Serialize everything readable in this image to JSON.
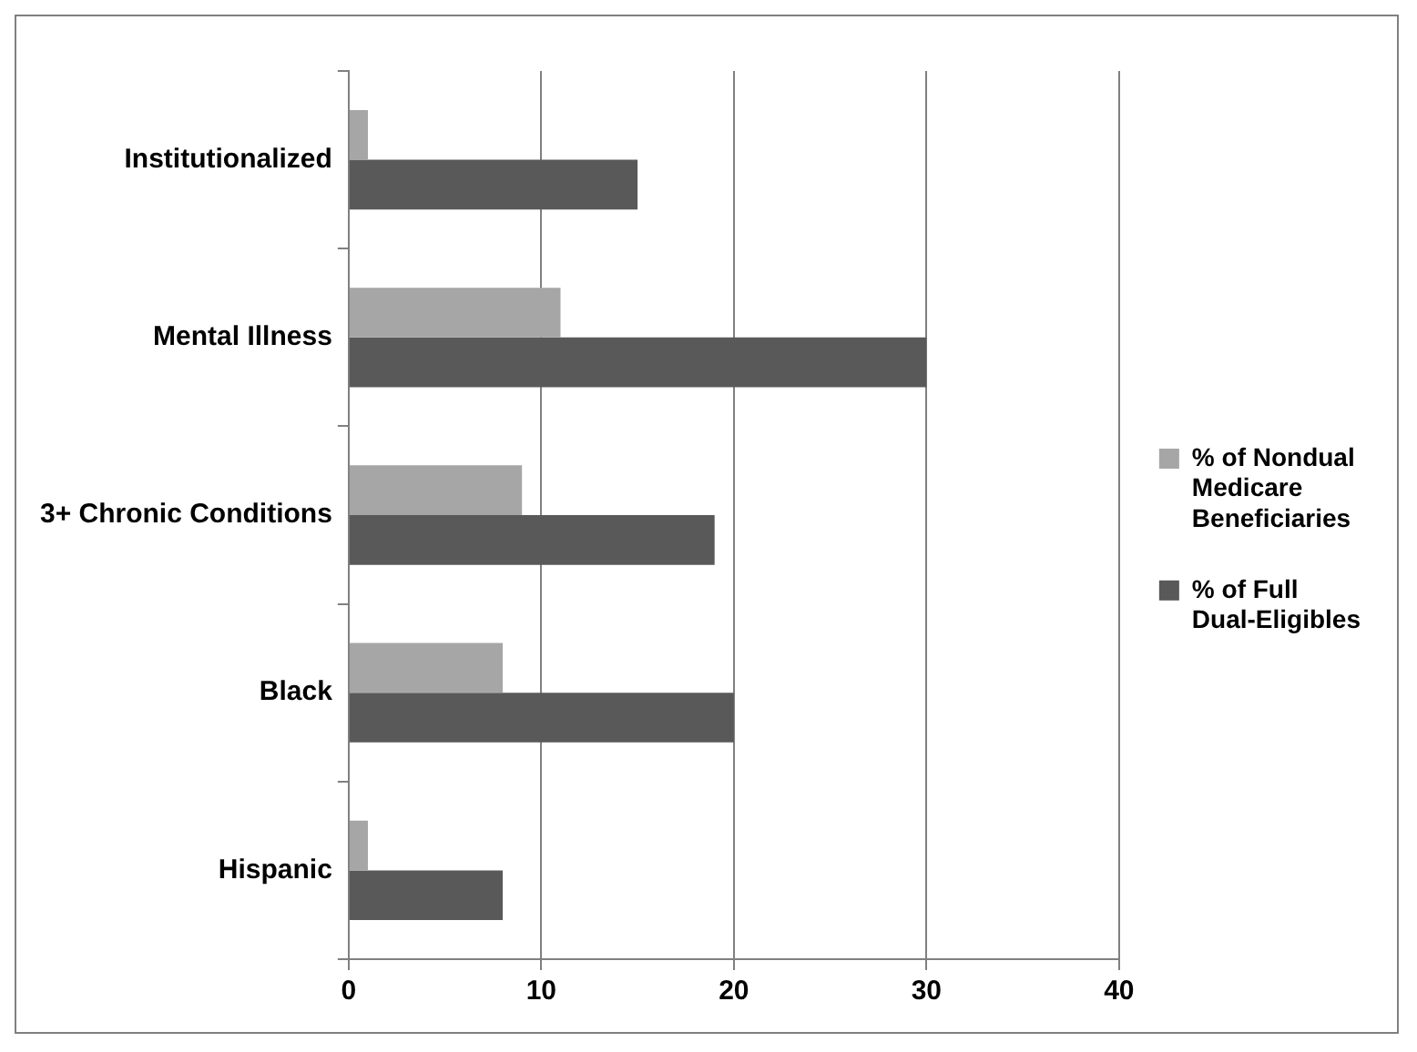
{
  "chart_data": {
    "type": "bar",
    "orientation": "horizontal",
    "categories": [
      "Institutionalized",
      "Mental Illness",
      "3+ Chronic Conditions",
      "Black",
      "Hispanic"
    ],
    "series": [
      {
        "name": "% of Nondual Medicare Beneficiaries",
        "color": "#a6a6a6",
        "values": [
          1,
          11,
          9,
          8,
          1
        ]
      },
      {
        "name": "% of Full Dual-Eligibles",
        "color": "#595959",
        "values": [
          15,
          30,
          19,
          20,
          8
        ]
      }
    ],
    "xlim": [
      0,
      40
    ],
    "xticks": [
      0,
      10,
      20,
      30,
      40
    ],
    "grid": "x",
    "legend": "right"
  }
}
